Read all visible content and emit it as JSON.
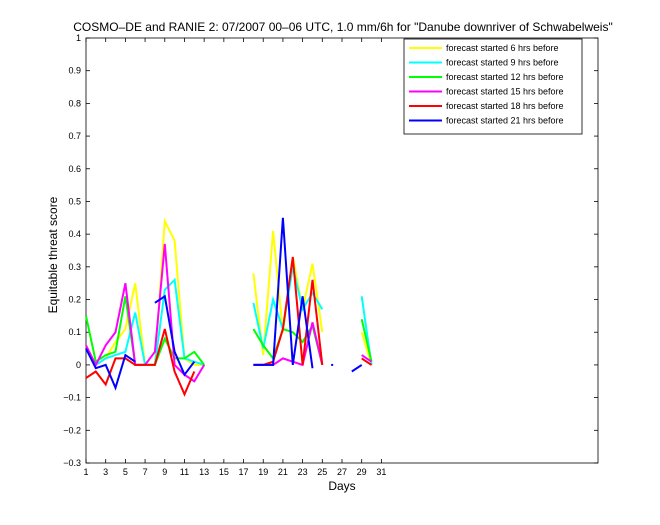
{
  "chart_data": {
    "type": "line",
    "title": "COSMO–DE and RANIE 2: 07/2007 00–06 UTC, 1.0 mm/6h for \"Danube downriver of Schwabelweis\"",
    "xlabel": "Days",
    "ylabel": "Equitable threat score",
    "xlim": [
      1,
      53
    ],
    "ylim": [
      -0.3,
      1
    ],
    "xticks": [
      1,
      3,
      5,
      7,
      9,
      11,
      13,
      15,
      17,
      19,
      21,
      23,
      25,
      27,
      29,
      31
    ],
    "yticks": [
      -0.3,
      -0.2,
      -0.1,
      0,
      0.1,
      0.2,
      0.3,
      0.4,
      0.5,
      0.6,
      0.7,
      0.8,
      0.9,
      1
    ],
    "ytick_labels": [
      "−0.3",
      "−0.2",
      "−0.1",
      "0",
      "0.1",
      "0.2",
      "0.3",
      "0.4",
      "0.5",
      "0.6",
      "0.7",
      "0.8",
      "0.9",
      "1"
    ],
    "grid": false,
    "legend_position": "top-right",
    "series": [
      {
        "name": "forecast started 6 hrs before",
        "color": "#ffff00",
        "segments": [
          [
            [
              1,
              0.06
            ],
            [
              2,
              0.0
            ],
            [
              3,
              0.02
            ],
            [
              4,
              0.07
            ],
            [
              5,
              0.11
            ],
            [
              6,
              0.25
            ],
            [
              7,
              0.0
            ],
            [
              8,
              0.0
            ],
            [
              9,
              0.44
            ],
            [
              10,
              0.38
            ],
            [
              11,
              0.02
            ],
            [
              12,
              0.0
            ],
            [
              13,
              0.0
            ]
          ],
          [
            [
              18,
              0.28
            ],
            [
              19,
              0.03
            ],
            [
              20,
              0.41
            ],
            [
              21,
              0.1
            ],
            [
              22,
              0.33
            ],
            [
              23,
              0.17
            ],
            [
              24,
              0.31
            ],
            [
              25,
              0.1
            ]
          ],
          [
            [
              29,
              0.1
            ],
            [
              30,
              0.0
            ]
          ]
        ]
      },
      {
        "name": "forecast started 9 hrs before",
        "color": "#00ffff",
        "segments": [
          [
            [
              1,
              0.05
            ],
            [
              2,
              0.0
            ],
            [
              3,
              0.02
            ],
            [
              4,
              0.03
            ],
            [
              5,
              0.04
            ],
            [
              6,
              0.16
            ],
            [
              7,
              0.0
            ],
            [
              8,
              0.0
            ],
            [
              9,
              0.23
            ],
            [
              10,
              0.26
            ],
            [
              11,
              0.02
            ],
            [
              12,
              0.01
            ],
            [
              13,
              0.0
            ]
          ],
          [
            [
              18,
              0.19
            ],
            [
              19,
              0.05
            ],
            [
              20,
              0.2
            ],
            [
              21,
              0.11
            ],
            [
              22,
              0.3
            ],
            [
              23,
              0.17
            ],
            [
              24,
              0.22
            ],
            [
              25,
              0.17
            ]
          ],
          [
            [
              29,
              0.21
            ],
            [
              30,
              0.0
            ]
          ]
        ]
      },
      {
        "name": "forecast started 12 hrs before",
        "color": "#00ff00",
        "segments": [
          [
            [
              1,
              0.15
            ],
            [
              2,
              0.01
            ],
            [
              3,
              0.03
            ],
            [
              4,
              0.04
            ],
            [
              5,
              0.21
            ],
            [
              6,
              0.0
            ],
            [
              7,
              0.0
            ],
            [
              8,
              0.0
            ],
            [
              9,
              0.08
            ],
            [
              10,
              0.02
            ],
            [
              11,
              0.02
            ],
            [
              12,
              0.04
            ],
            [
              13,
              0.0
            ]
          ],
          [
            [
              18,
              0.11
            ],
            [
              19,
              0.06
            ],
            [
              20,
              0.02
            ],
            [
              21,
              0.11
            ],
            [
              22,
              0.1
            ],
            [
              23,
              0.07
            ],
            [
              24,
              0.12
            ],
            [
              25,
              0.0
            ]
          ],
          [
            [
              29,
              0.14
            ],
            [
              30,
              0.01
            ]
          ]
        ]
      },
      {
        "name": "forecast started 15 hrs before",
        "color": "#ff00ff",
        "segments": [
          [
            [
              1,
              0.06
            ],
            [
              2,
              0.0
            ],
            [
              3,
              0.06
            ],
            [
              4,
              0.1
            ],
            [
              5,
              0.25
            ],
            [
              6,
              0.0
            ],
            [
              7,
              0.0
            ],
            [
              8,
              0.04
            ],
            [
              9,
              0.37
            ],
            [
              10,
              0.0
            ],
            [
              11,
              -0.03
            ],
            [
              12,
              -0.05
            ],
            [
              13,
              0.0
            ]
          ],
          [
            [
              18,
              0.0
            ],
            [
              19,
              0.0
            ],
            [
              20,
              0.0
            ],
            [
              21,
              0.02
            ],
            [
              22,
              0.01
            ],
            [
              23,
              0.0
            ],
            [
              24,
              0.13
            ],
            [
              25,
              0.0
            ]
          ],
          [
            [
              29,
              0.03
            ],
            [
              30,
              0.01
            ]
          ]
        ]
      },
      {
        "name": "forecast started 18 hrs before",
        "color": "#ff0000",
        "segments": [
          [
            [
              1,
              -0.04
            ],
            [
              2,
              -0.02
            ],
            [
              3,
              -0.06
            ],
            [
              4,
              0.02
            ],
            [
              5,
              0.02
            ],
            [
              6,
              0.0
            ],
            [
              7,
              0.0
            ],
            [
              8,
              0.0
            ],
            [
              9,
              0.11
            ],
            [
              10,
              -0.02
            ],
            [
              11,
              -0.09
            ],
            [
              12,
              -0.02
            ]
          ],
          [
            [
              18,
              0.0
            ],
            [
              19,
              0.0
            ],
            [
              20,
              0.01
            ],
            [
              21,
              0.11
            ],
            [
              22,
              0.33
            ],
            [
              23,
              0.0
            ],
            [
              24,
              0.26
            ],
            [
              25,
              0.0
            ]
          ],
          [
            [
              29,
              0.02
            ],
            [
              30,
              0.0
            ]
          ]
        ]
      },
      {
        "name": "forecast started 21 hrs before",
        "color": "#0000ff",
        "segments": [
          [
            [
              1,
              0.05
            ],
            [
              2,
              -0.01
            ],
            [
              3,
              0.0
            ],
            [
              4,
              -0.07
            ],
            [
              5,
              0.03
            ],
            [
              6,
              0.01
            ]
          ],
          [
            [
              8,
              0.19
            ],
            [
              9,
              0.21
            ],
            [
              10,
              0.04
            ],
            [
              11,
              -0.03
            ],
            [
              12,
              0.01
            ]
          ],
          [
            [
              18,
              0.0
            ],
            [
              19,
              0.0
            ],
            [
              20,
              0.0
            ],
            [
              21,
              0.45
            ],
            [
              22,
              0.0
            ],
            [
              23,
              0.21
            ],
            [
              24,
              -0.01
            ]
          ],
          [
            [
              26,
              0.0
            ]
          ],
          [
            [
              28,
              -0.02
            ],
            [
              29,
              0.0
            ]
          ]
        ]
      }
    ]
  }
}
